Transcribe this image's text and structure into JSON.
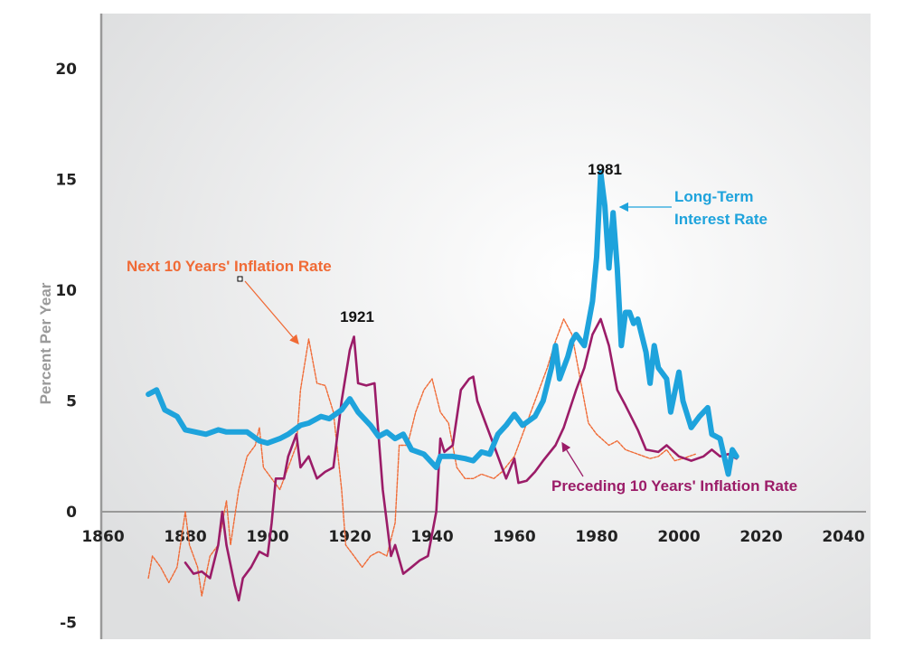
{
  "chart_data": {
    "type": "line",
    "title": "",
    "xlabel": "",
    "ylabel": "Percent Per Year",
    "xlim": [
      1860,
      2040
    ],
    "ylim": [
      -5,
      20
    ],
    "x_ticks": [
      "1860",
      "1880",
      "1900",
      "1920",
      "1940",
      "1960",
      "1980",
      "2000",
      "2020",
      "2040"
    ],
    "y_ticks": [
      "20",
      "15",
      "10",
      "5",
      "0",
      "-5"
    ],
    "grid": false,
    "colors": {
      "interest": "#1ea3dc",
      "preceding": "#9b1c68",
      "next": "#f06a35",
      "axis": "#999999"
    },
    "annotations": {
      "next_label": "Next 10 Years' Inflation Rate",
      "interest_label_line1": "Long-Term",
      "interest_label_line2": "Interest Rate",
      "preceding_label": "Preceding 10 Years' Inflation Rate",
      "peak_1921": "1921",
      "peak_1981": "1981"
    },
    "series": [
      {
        "name": "Long-Term Interest Rate",
        "style": "thick-solid",
        "x": [
          1871,
          1873,
          1875,
          1878,
          1880,
          1885,
          1888,
          1890,
          1895,
          1898,
          1900,
          1903,
          1905,
          1908,
          1910,
          1913,
          1915,
          1918,
          1920,
          1922,
          1925,
          1927,
          1929,
          1931,
          1933,
          1935,
          1938,
          1941,
          1942,
          1945,
          1948,
          1950,
          1952,
          1954,
          1956,
          1958,
          1960,
          1962,
          1965,
          1967,
          1969,
          1970,
          1971,
          1973,
          1974,
          1975,
          1977,
          1978,
          1979,
          1980,
          1981,
          1982,
          1983,
          1984,
          1985,
          1986,
          1987,
          1988,
          1989,
          1990,
          1992,
          1993,
          1994,
          1995,
          1997,
          1998,
          2000,
          2001,
          2003,
          2005,
          2007,
          2008,
          2010,
          2012,
          2013,
          2014
        ],
        "y": [
          5.3,
          5.5,
          4.6,
          4.3,
          3.7,
          3.5,
          3.7,
          3.6,
          3.6,
          3.2,
          3.1,
          3.3,
          3.5,
          3.9,
          4.0,
          4.3,
          4.2,
          4.6,
          5.1,
          4.5,
          3.9,
          3.4,
          3.6,
          3.3,
          3.5,
          2.8,
          2.6,
          2.0,
          2.5,
          2.5,
          2.4,
          2.3,
          2.7,
          2.6,
          3.5,
          3.9,
          4.4,
          3.9,
          4.3,
          5.0,
          6.5,
          7.5,
          6.0,
          7.0,
          7.7,
          8.0,
          7.5,
          8.5,
          9.5,
          11.5,
          15.3,
          13.8,
          11.0,
          13.5,
          11.0,
          7.5,
          9.0,
          9.0,
          8.5,
          8.7,
          7.2,
          5.8,
          7.5,
          6.5,
          6.0,
          4.5,
          6.3,
          5.0,
          3.8,
          4.3,
          4.7,
          3.5,
          3.3,
          1.7,
          2.8,
          2.5
        ]
      },
      {
        "name": "Preceding 10 Years' Inflation Rate",
        "style": "solid",
        "x": [
          1880,
          1882,
          1884,
          1886,
          1888,
          1889,
          1890,
          1892,
          1893,
          1894,
          1896,
          1898,
          1900,
          1901,
          1902,
          1904,
          1905,
          1907,
          1908,
          1910,
          1912,
          1914,
          1916,
          1918,
          1920,
          1921,
          1922,
          1924,
          1926,
          1928,
          1930,
          1931,
          1933,
          1935,
          1937,
          1939,
          1941,
          1942,
          1943,
          1945,
          1947,
          1949,
          1950,
          1951,
          1953,
          1955,
          1957,
          1958,
          1960,
          1961,
          1963,
          1965,
          1967,
          1970,
          1972,
          1975,
          1977,
          1979,
          1981,
          1983,
          1985,
          1987,
          1990,
          1992,
          1995,
          1997,
          2000,
          2003,
          2006,
          2008,
          2010,
          2012,
          2014
        ],
        "y": [
          -2.3,
          -2.8,
          -2.7,
          -3.0,
          -1.5,
          0.0,
          -1.5,
          -3.3,
          -4.0,
          -3.0,
          -2.5,
          -1.8,
          -2.0,
          -0.5,
          1.5,
          1.5,
          2.5,
          3.5,
          2.0,
          2.5,
          1.5,
          1.8,
          2.0,
          5.0,
          7.3,
          7.9,
          5.8,
          5.7,
          5.8,
          1.0,
          -2.0,
          -1.5,
          -2.8,
          -2.5,
          -2.2,
          -2.0,
          0.0,
          3.3,
          2.7,
          3.0,
          5.5,
          6.0,
          6.1,
          5.0,
          4.0,
          3.0,
          2.0,
          1.5,
          2.4,
          1.3,
          1.4,
          1.8,
          2.3,
          3.0,
          3.8,
          5.5,
          6.5,
          8.0,
          8.7,
          7.5,
          5.5,
          4.8,
          3.7,
          2.8,
          2.7,
          3.0,
          2.5,
          2.3,
          2.5,
          2.8,
          2.5,
          2.6,
          2.4
        ]
      },
      {
        "name": "Next 10 Years' Inflation Rate",
        "style": "dashed",
        "x": [
          1871,
          1872,
          1874,
          1876,
          1878,
          1880,
          1881,
          1883,
          1884,
          1886,
          1888,
          1890,
          1891,
          1893,
          1895,
          1897,
          1898,
          1899,
          1901,
          1903,
          1905,
          1907,
          1908,
          1910,
          1912,
          1914,
          1916,
          1918,
          1919,
          1921,
          1923,
          1925,
          1927,
          1929,
          1931,
          1932,
          1934,
          1936,
          1938,
          1940,
          1942,
          1944,
          1946,
          1948,
          1950,
          1952,
          1955,
          1957,
          1960,
          1962,
          1964,
          1966,
          1968,
          1970,
          1972,
          1974,
          1976,
          1978,
          1980,
          1983,
          1985,
          1987,
          1990,
          1993,
          1995,
          1997,
          1999,
          2001,
          2004
        ],
        "y": [
          -3.0,
          -2.0,
          -2.5,
          -3.2,
          -2.5,
          0.0,
          -1.5,
          -2.5,
          -3.8,
          -2.0,
          -1.5,
          0.5,
          -1.5,
          1.0,
          2.5,
          3.0,
          3.8,
          2.0,
          1.5,
          1.0,
          2.0,
          3.0,
          5.5,
          7.8,
          5.8,
          5.7,
          4.5,
          1.0,
          -1.5,
          -2.0,
          -2.5,
          -2.0,
          -1.8,
          -2.0,
          -0.5,
          3.0,
          3.0,
          4.5,
          5.5,
          6.0,
          4.5,
          4.0,
          2.0,
          1.5,
          1.5,
          1.7,
          1.5,
          1.8,
          2.5,
          3.5,
          4.5,
          5.5,
          6.5,
          7.7,
          8.7,
          8.0,
          6.0,
          4.0,
          3.5,
          3.0,
          3.2,
          2.8,
          2.6,
          2.4,
          2.5,
          2.8,
          2.3,
          2.4,
          2.6
        ]
      }
    ]
  }
}
